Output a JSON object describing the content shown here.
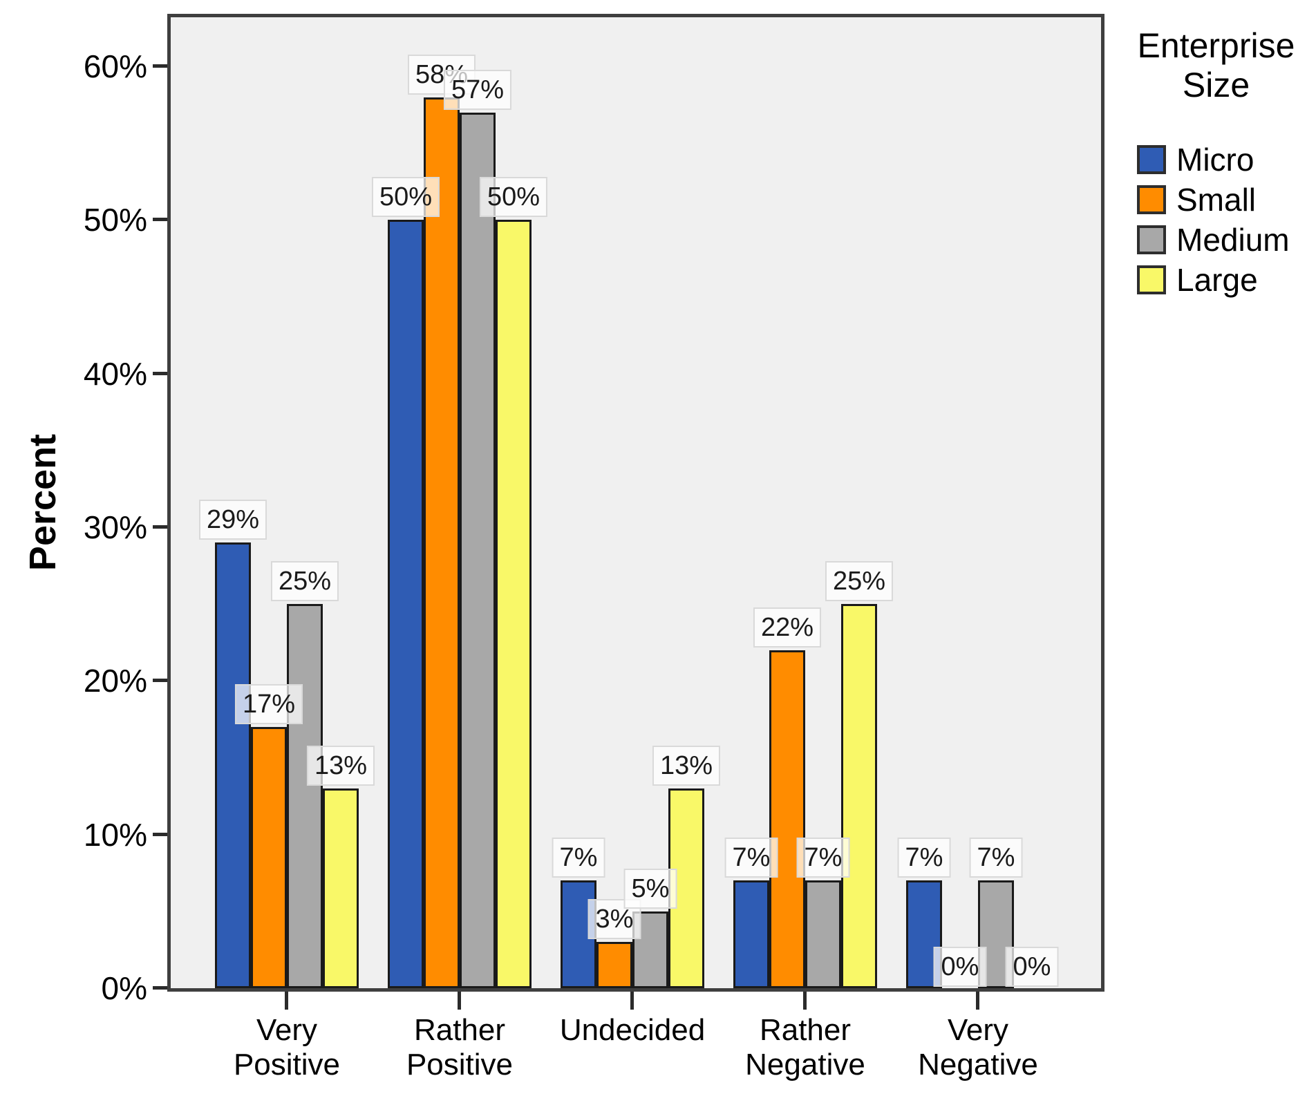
{
  "chart_data": {
    "type": "bar",
    "title": "",
    "ylabel": "Percent",
    "xlabel": "",
    "ylim": [
      0,
      63
    ],
    "grid": false,
    "plot_background": "#F0F0F0",
    "ytick_values": [
      0,
      10,
      20,
      30,
      40,
      50,
      60
    ],
    "ytick_labels": [
      "0%",
      "10%",
      "20%",
      "30%",
      "40%",
      "50%",
      "60%"
    ],
    "categories": [
      "Very\nPositive",
      "Rather\nPositive",
      "Undecided",
      "Rather\nNegative",
      "Very\nNegative"
    ],
    "legend": {
      "title": "Enterprise\nSize",
      "position": "right-top"
    },
    "series": [
      {
        "name": "Micro",
        "color": "#2F5CB4",
        "values": [
          29,
          50,
          7,
          7,
          7
        ],
        "labels": [
          "29%",
          "50%",
          "7%",
          "7%",
          "7%"
        ]
      },
      {
        "name": "Small",
        "color": "#FF8C00",
        "values": [
          17,
          58,
          3,
          22,
          0
        ],
        "labels": [
          "17%",
          "58%",
          "3%",
          "22%",
          "0%"
        ]
      },
      {
        "name": "Medium",
        "color": "#A8A8A8",
        "values": [
          25,
          57,
          5,
          7,
          7
        ],
        "labels": [
          "25%",
          "57%",
          "5%",
          "7%",
          "7%"
        ]
      },
      {
        "name": "Large",
        "color": "#F9F868",
        "values": [
          13,
          50,
          13,
          25,
          0
        ],
        "labels": [
          "13%",
          "50%",
          "13%",
          "25%",
          "0%"
        ]
      }
    ]
  }
}
